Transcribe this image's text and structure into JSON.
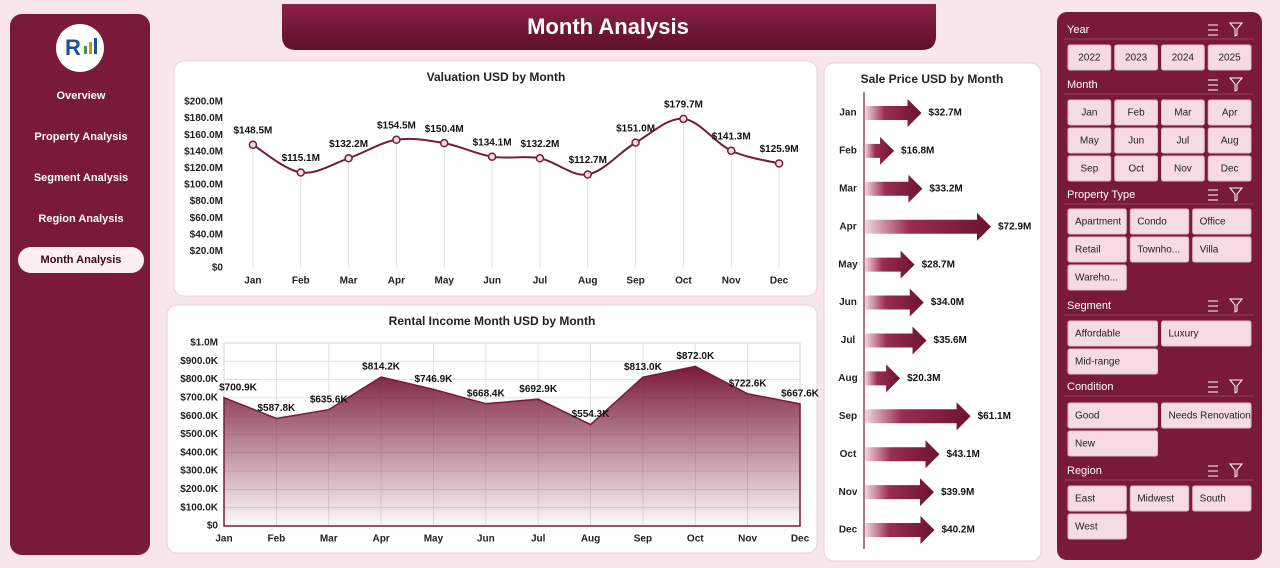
{
  "header": {
    "title": "Month Analysis"
  },
  "nav": {
    "items": [
      "Overview",
      "Property Analysis",
      "Segment Analysis",
      "Region Analysis",
      "Month Analysis"
    ],
    "active": 4
  },
  "chart_data": [
    {
      "type": "line",
      "title": "Valuation USD by Month",
      "color": "#7a1a3a",
      "grid": true,
      "categories": [
        "Jan",
        "Feb",
        "Mar",
        "Apr",
        "May",
        "Jun",
        "Jul",
        "Aug",
        "Sep",
        "Oct",
        "Nov",
        "Dec"
      ],
      "values": [
        148.5,
        115.1,
        132.2,
        154.5,
        150.4,
        134.1,
        132.2,
        112.7,
        151.0,
        179.7,
        141.3,
        125.9
      ],
      "value_labels": [
        "$148.5M",
        "$115.1M",
        "$132.2M",
        "$154.5M",
        "$150.4M",
        "$134.1M",
        "$132.2M",
        "$112.7M",
        "$151.0M",
        "$179.7M",
        "$141.3M",
        "$125.9M"
      ],
      "ylim": [
        0,
        200
      ],
      "yticks": [
        {
          "value": 0,
          "label": "$0"
        },
        {
          "value": 20,
          "label": "$20.0M"
        },
        {
          "value": 40,
          "label": "$40.0M"
        },
        {
          "value": 60,
          "label": "$60.0M"
        },
        {
          "value": 80,
          "label": "$80.0M"
        },
        {
          "value": 100,
          "label": "$100.0M"
        },
        {
          "value": 120,
          "label": "$120.0M"
        },
        {
          "value": 140,
          "label": "$140.0M"
        },
        {
          "value": 160,
          "label": "$160.0M"
        },
        {
          "value": 180,
          "label": "$180.0M"
        },
        {
          "value": 200,
          "label": "$200.0M"
        }
      ]
    },
    {
      "type": "area",
      "title": "Rental Income Month USD by Month",
      "color": "#7a1a3a",
      "grid": true,
      "categories": [
        "Jan",
        "Feb",
        "Mar",
        "Apr",
        "May",
        "Jun",
        "Jul",
        "Aug",
        "Sep",
        "Oct",
        "Nov",
        "Dec"
      ],
      "values": [
        700.9,
        587.8,
        635.6,
        814.2,
        746.9,
        668.4,
        692.9,
        554.3,
        813.0,
        872.0,
        722.6,
        667.6
      ],
      "value_labels": [
        "$700.9K",
        "$587.8K",
        "$635.6K",
        "$814.2K",
        "$746.9K",
        "$668.4K",
        "$692.9K",
        "$554.3K",
        "$813.0K",
        "$872.0K",
        "$722.6K",
        "$667.6K"
      ],
      "ylim": [
        0,
        1000
      ],
      "yticks": [
        {
          "value": 0,
          "label": "$0"
        },
        {
          "value": 100,
          "label": "$100.0K"
        },
        {
          "value": 200,
          "label": "$200.0K"
        },
        {
          "value": 300,
          "label": "$300.0K"
        },
        {
          "value": 400,
          "label": "$400.0K"
        },
        {
          "value": 500,
          "label": "$500.0K"
        },
        {
          "value": 600,
          "label": "$600.0K"
        },
        {
          "value": 700,
          "label": "$700.0K"
        },
        {
          "value": 800,
          "label": "$800.0K"
        },
        {
          "value": 900,
          "label": "$900.0K"
        },
        {
          "value": 1000,
          "label": "$1.0M"
        }
      ]
    },
    {
      "type": "arrow-bar",
      "title": "Sale Price USD by Month",
      "color": "#7a1a3a",
      "categories": [
        "Jan",
        "Feb",
        "Mar",
        "Apr",
        "May",
        "Jun",
        "Jul",
        "Aug",
        "Sep",
        "Oct",
        "Nov",
        "Dec"
      ],
      "values": [
        32.7,
        16.8,
        33.2,
        72.9,
        28.7,
        34.0,
        35.6,
        20.3,
        61.1,
        43.1,
        39.9,
        40.2
      ],
      "value_labels": [
        "$32.7M",
        "$16.8M",
        "$33.2M",
        "$72.9M",
        "$28.7M",
        "$34.0M",
        "$35.6M",
        "$20.3M",
        "$61.1M",
        "$43.1M",
        "$39.9M",
        "$40.2M"
      ]
    }
  ],
  "slicers": [
    {
      "title": "Year",
      "items": [
        "2022",
        "2023",
        "2024",
        "2025"
      ]
    },
    {
      "title": "Month",
      "items": [
        "Jan",
        "Feb",
        "Mar",
        "Apr",
        "May",
        "Jun",
        "Jul",
        "Aug",
        "Sep",
        "Oct",
        "Nov",
        "Dec"
      ]
    },
    {
      "title": "Property Type",
      "items": [
        "Apartment",
        "Condo",
        "Office",
        "Retail",
        "Townho...",
        "Villa",
        "Wareho..."
      ]
    },
    {
      "title": "Segment",
      "items": [
        "Affordable",
        "Luxury",
        "Mid-range"
      ]
    },
    {
      "title": "Condition",
      "items": [
        "Good",
        "Needs Renovation",
        "New"
      ]
    },
    {
      "title": "Region",
      "items": [
        "East",
        "Midwest",
        "South",
        "West"
      ]
    }
  ]
}
